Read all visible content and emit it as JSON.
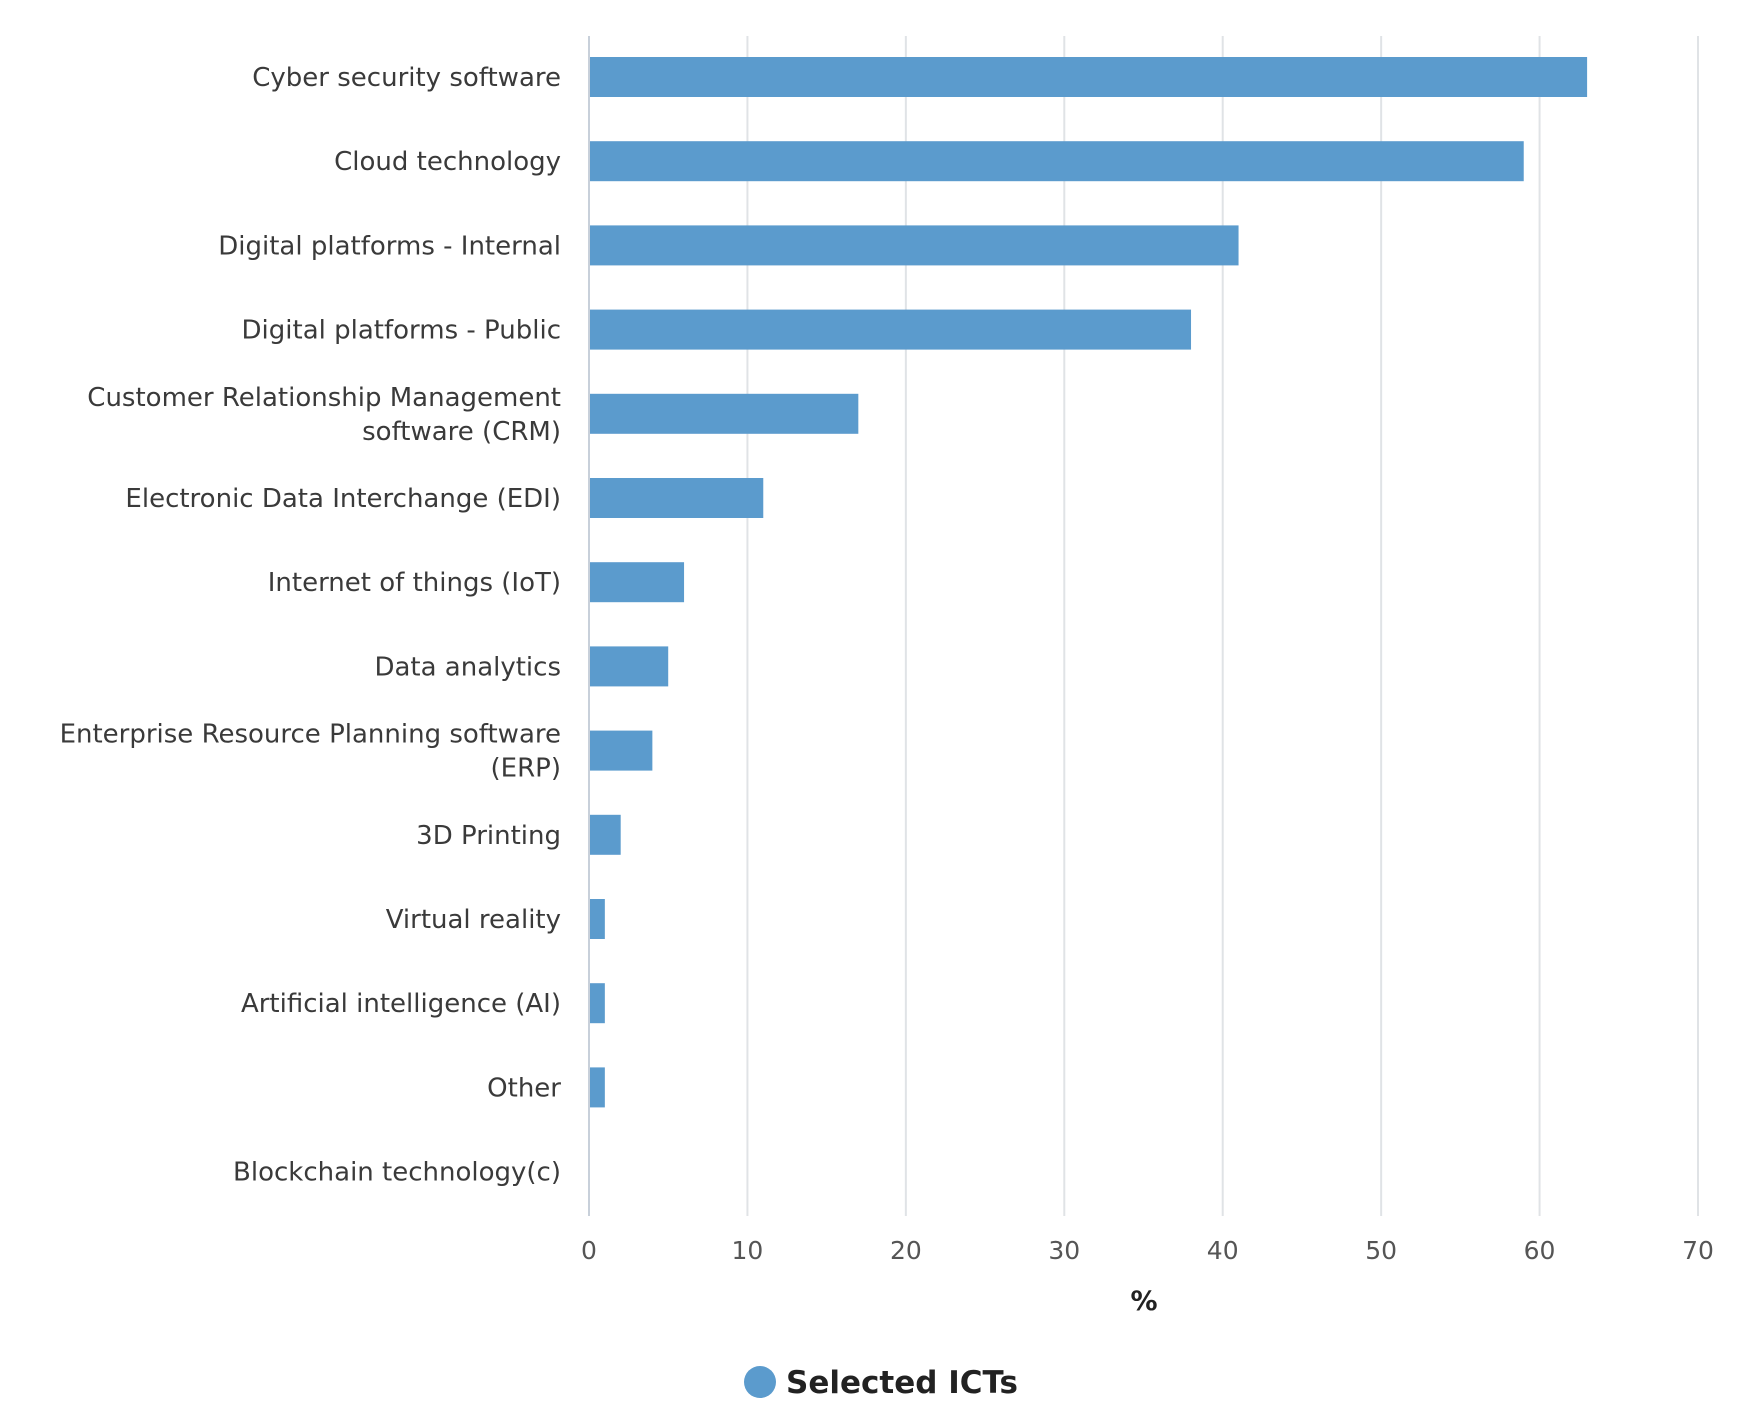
{
  "chart_data": {
    "type": "bar",
    "orientation": "horizontal",
    "title": "",
    "xlabel": "%",
    "ylabel": "",
    "xlim": [
      0,
      70
    ],
    "x_ticks": [
      0,
      10,
      20,
      30,
      40,
      50,
      60,
      70
    ],
    "grid": true,
    "legend_position": "bottom-center",
    "series": [
      {
        "name": "Selected ICTs",
        "color": "#5b9bcd",
        "values": [
          63,
          59,
          41,
          38,
          17,
          11,
          6,
          5,
          4,
          2,
          1,
          1,
          1,
          0
        ]
      }
    ],
    "categories": [
      [
        "Cyber security software"
      ],
      [
        "Cloud technology"
      ],
      [
        "Digital platforms - Internal"
      ],
      [
        "Digital platforms - Public"
      ],
      [
        "Customer Relationship Management",
        "software (CRM)"
      ],
      [
        "Electronic Data Interchange (EDI)"
      ],
      [
        "Internet of things (IoT)"
      ],
      [
        "Data analytics"
      ],
      [
        "Enterprise Resource Planning software",
        "(ERP)"
      ],
      [
        "3D Printing"
      ],
      [
        "Virtual reality"
      ],
      [
        "Artificial intelligence (AI)"
      ],
      [
        "Other"
      ],
      [
        "Blockchain technology(c)"
      ]
    ]
  }
}
